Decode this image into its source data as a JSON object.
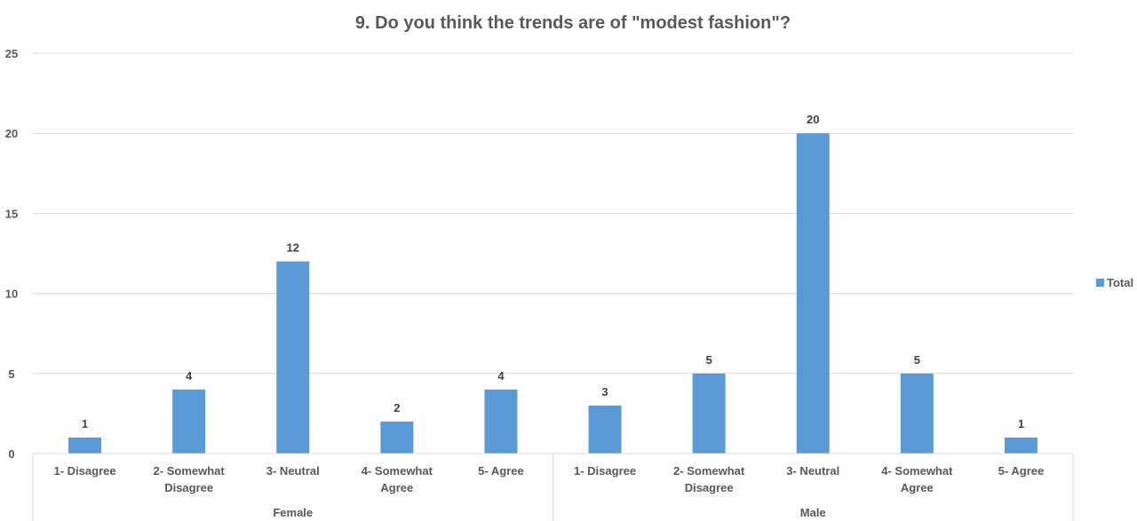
{
  "chart_data": {
    "type": "bar",
    "title": "9. Do you think the trends are of \"modest fashion\"?",
    "ylim": [
      0,
      25
    ],
    "yticks": [
      0,
      5,
      10,
      15,
      20,
      25
    ],
    "grid": true,
    "legend_position": "right",
    "series": [
      {
        "name": "Total",
        "color": "#5b9bd5",
        "groups": [
          {
            "name": "Female",
            "categories": [
              [
                "1- Disagree"
              ],
              [
                "2- Somewhat",
                "Disagree"
              ],
              [
                "3- Neutral"
              ],
              [
                "4- Somewhat",
                "Agree"
              ],
              [
                "5- Agree"
              ]
            ],
            "values": [
              1,
              4,
              12,
              2,
              4
            ]
          },
          {
            "name": "Male",
            "categories": [
              [
                "1- Disagree"
              ],
              [
                "2- Somewhat",
                "Disagree"
              ],
              [
                "3- Neutral"
              ],
              [
                "4- Somewhat",
                "Agree"
              ],
              [
                "5- Agree"
              ]
            ],
            "values": [
              3,
              5,
              20,
              5,
              1
            ]
          }
        ]
      }
    ]
  }
}
